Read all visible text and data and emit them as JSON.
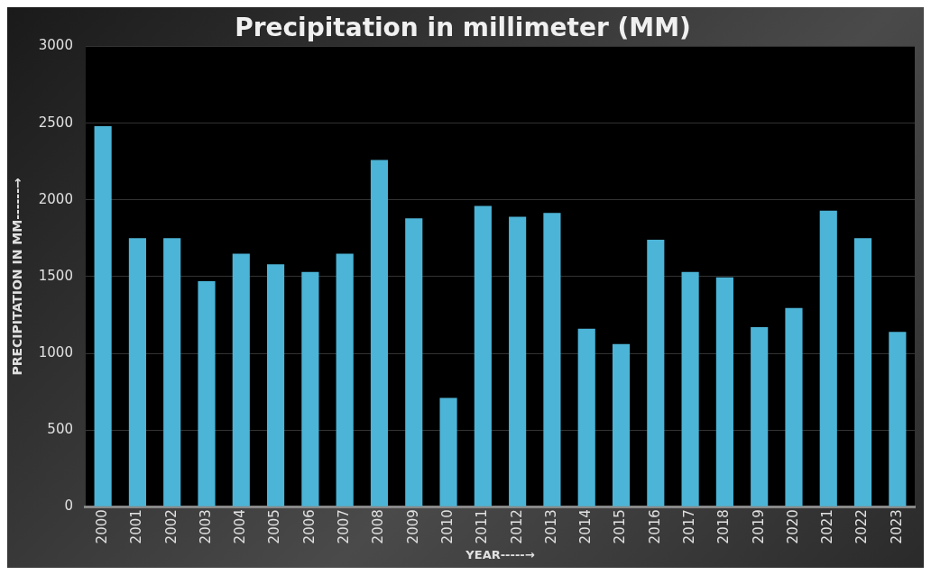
{
  "chart_data": {
    "type": "bar",
    "title": "Precipitation in millimeter (MM)",
    "xlabel": "YEAR-----→",
    "ylabel": "PRECIPITATION IN MM------→",
    "categories": [
      "2000",
      "2001",
      "2002",
      "2003",
      "2004",
      "2005",
      "2006",
      "2007",
      "2008",
      "2009",
      "2010",
      "2011",
      "2012",
      "2013",
      "2014",
      "2015",
      "2016",
      "2017",
      "2018",
      "2019",
      "2020",
      "2021",
      "2022",
      "2023"
    ],
    "values": [
      2480,
      1750,
      1750,
      1470,
      1650,
      1580,
      1530,
      1650,
      2260,
      1880,
      710,
      1960,
      1890,
      1915,
      1160,
      1060,
      1740,
      1530,
      1495,
      1170,
      1295,
      1930,
      1750,
      1140
    ],
    "color": "#4cb4d6",
    "ylim": [
      0,
      3000
    ],
    "yticks": [
      0,
      500,
      1000,
      1500,
      2000,
      2500,
      3000
    ],
    "grid": "y"
  }
}
